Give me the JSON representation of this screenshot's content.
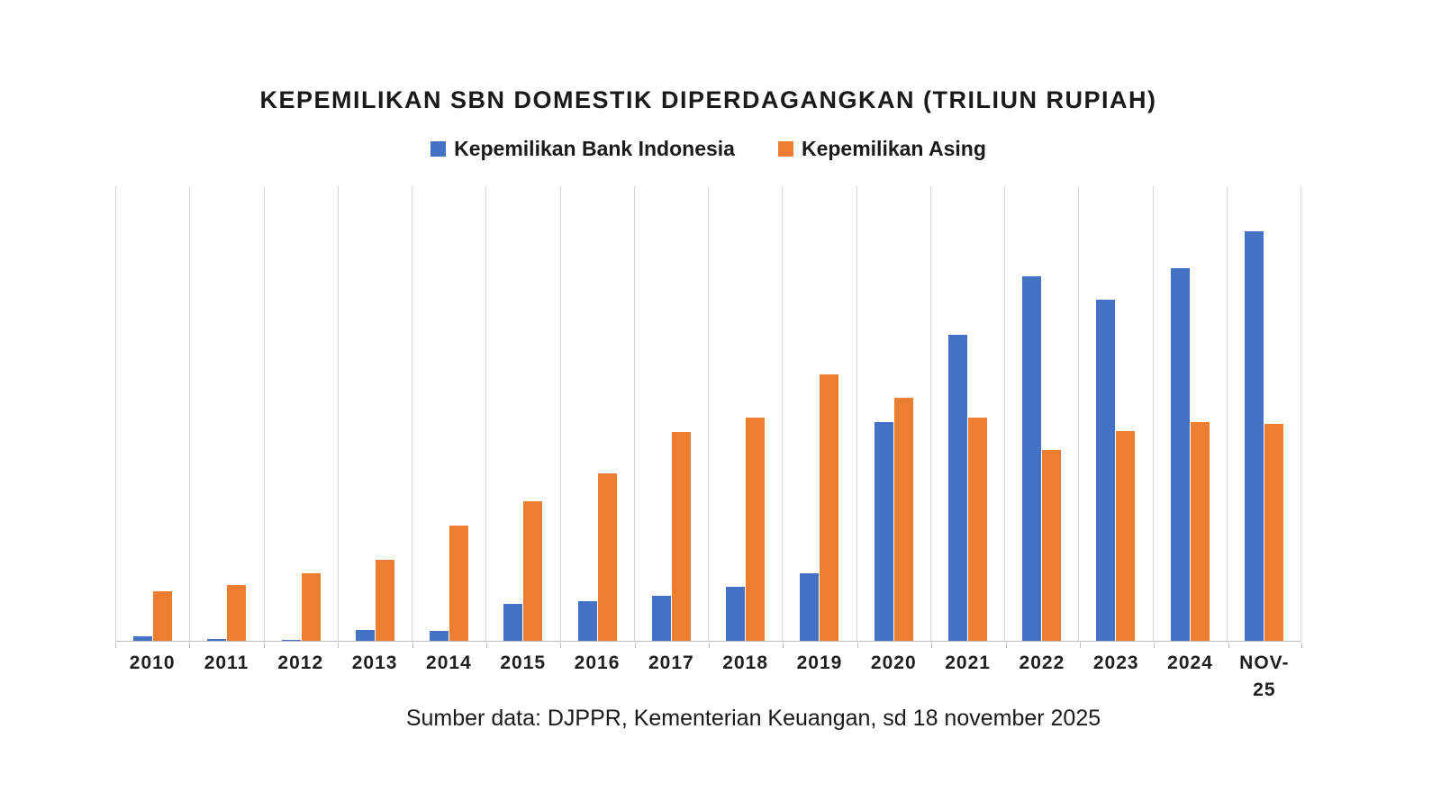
{
  "chart": {
    "title": "KEPEMILIKAN SBN DOMESTIK DIPERDAGANGKAN (TRILIUN RUPIAH)",
    "source_note": "Sumber data: DJPPR, Kementerian Keuangan, sd 18 november 2025"
  },
  "chart_data": {
    "type": "bar",
    "title": "KEPEMILIKAN SBN DOMESTIK DIPERDAGANGKAN (TRILIUN RUPIAH)",
    "categories": [
      "2010",
      "2011",
      "2012",
      "2013",
      "2014",
      "2015",
      "2016",
      "2017",
      "2018",
      "2019",
      "2020",
      "2021",
      "2022",
      "2023",
      "2024",
      "NOV-25"
    ],
    "series": [
      {
        "name": "Kepemilikan Bank Indonesia",
        "color": "#4472C4",
        "values": [
          18,
          8,
          4,
          44,
          41,
          148,
          157,
          181,
          215,
          271,
          874,
          1222,
          1455,
          1362,
          1488,
          1636
        ]
      },
      {
        "name": "Kepemilikan Asing",
        "color": "#ED7D31",
        "values": [
          197,
          224,
          268,
          325,
          461,
          557,
          668,
          834,
          891,
          1063,
          972,
          892,
          762,
          839,
          875,
          866
        ]
      }
    ],
    "unit": "Triliun Rupiah",
    "xlabel": "",
    "ylabel": "",
    "ylim": [
      0,
      1820
    ],
    "y_axis_visible": false,
    "gridlines": "vertical-only",
    "legend_position": "top",
    "source_note": "Sumber data: DJPPR, Kementerian Keuangan, sd 18 november 2025"
  }
}
